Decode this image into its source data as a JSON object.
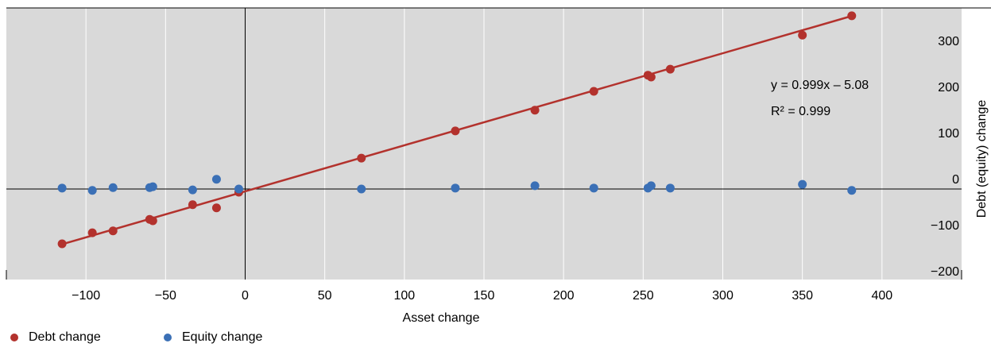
{
  "chart_data": {
    "type": "scatter",
    "xlabel": "Asset change",
    "ylabel": "Debt (equity) change",
    "xlim": [
      -150,
      450
    ],
    "ylim": [
      -200,
      393
    ],
    "xticks": [
      {
        "value": -100,
        "label": "−100"
      },
      {
        "value": -50,
        "label": "−50"
      },
      0,
      50,
      100,
      150,
      200,
      250,
      300,
      350,
      400
    ],
    "yticks": [
      {
        "value": -200,
        "label": "−200"
      },
      {
        "value": -100,
        "label": "−100"
      },
      0,
      100,
      200,
      300
    ],
    "grid": true,
    "series": [
      {
        "name": "Debt change",
        "color": "#b3322d",
        "x": [
          -115,
          -96,
          -83,
          -60,
          -58,
          -33,
          -18,
          -4,
          73,
          132,
          182,
          219,
          253,
          255,
          267,
          350,
          381
        ],
        "values": [
          -119,
          -95,
          -91,
          -66,
          -69,
          -34,
          -41,
          -7,
          67,
          126,
          171,
          212,
          247,
          243,
          260,
          334,
          376
        ]
      },
      {
        "name": "Equity change",
        "color": "#3b70b6",
        "x": [
          -115,
          -96,
          -83,
          -60,
          -58,
          -33,
          -18,
          -4,
          73,
          132,
          182,
          219,
          253,
          255,
          267,
          350,
          381
        ],
        "values": [
          2,
          -3,
          3,
          3,
          5,
          -2,
          21,
          0,
          0,
          2,
          7,
          2,
          2,
          7,
          2,
          10,
          -3
        ]
      }
    ],
    "trendline": {
      "slope": 0.999,
      "intercept": -5.08,
      "color": "#b3322d"
    },
    "annotations": [
      "y = 0.999x – 5.08",
      "R² = 0.999"
    ]
  }
}
